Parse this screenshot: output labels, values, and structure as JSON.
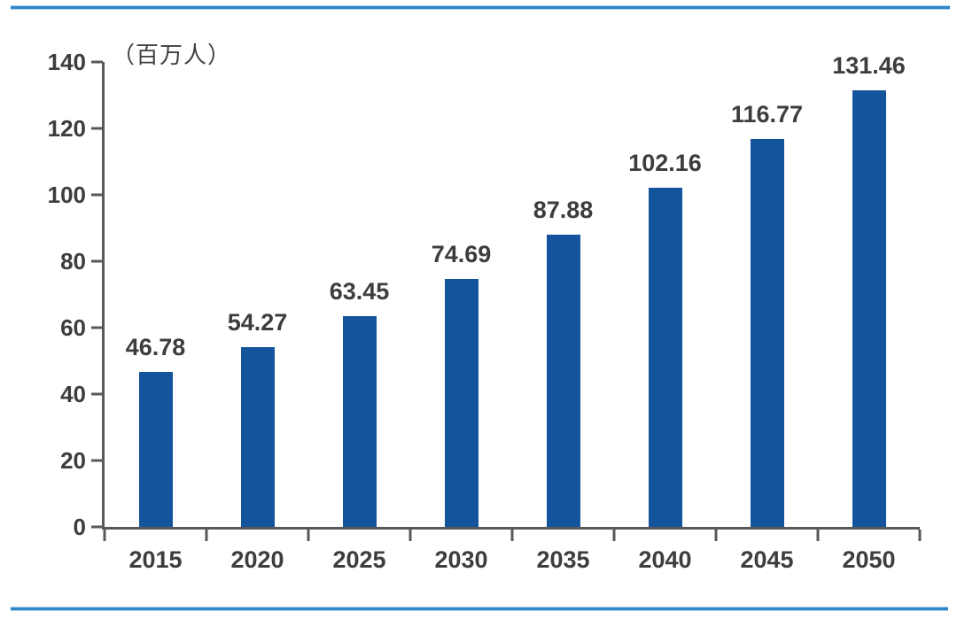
{
  "chart_data": {
    "type": "bar",
    "title": "",
    "unit_label": "（百万人）",
    "xlabel": "",
    "ylabel": "",
    "categories": [
      "2015",
      "2020",
      "2025",
      "2030",
      "2035",
      "2040",
      "2045",
      "2050"
    ],
    "values": [
      46.78,
      54.27,
      63.45,
      74.69,
      87.88,
      102.16,
      116.77,
      131.46
    ],
    "value_labels": [
      "46.78",
      "54.27",
      "63.45",
      "74.69",
      "87.88",
      "102.16",
      "116.77",
      "131.46"
    ],
    "ylim": [
      0,
      140
    ],
    "y_ticks": [
      0,
      20,
      40,
      60,
      80,
      100,
      120,
      140
    ],
    "grid": false,
    "legend": null,
    "colors": {
      "bar": "#14549C",
      "axis": "#595959",
      "text": "#3d3d3d",
      "rule": "#2e86c8"
    }
  }
}
